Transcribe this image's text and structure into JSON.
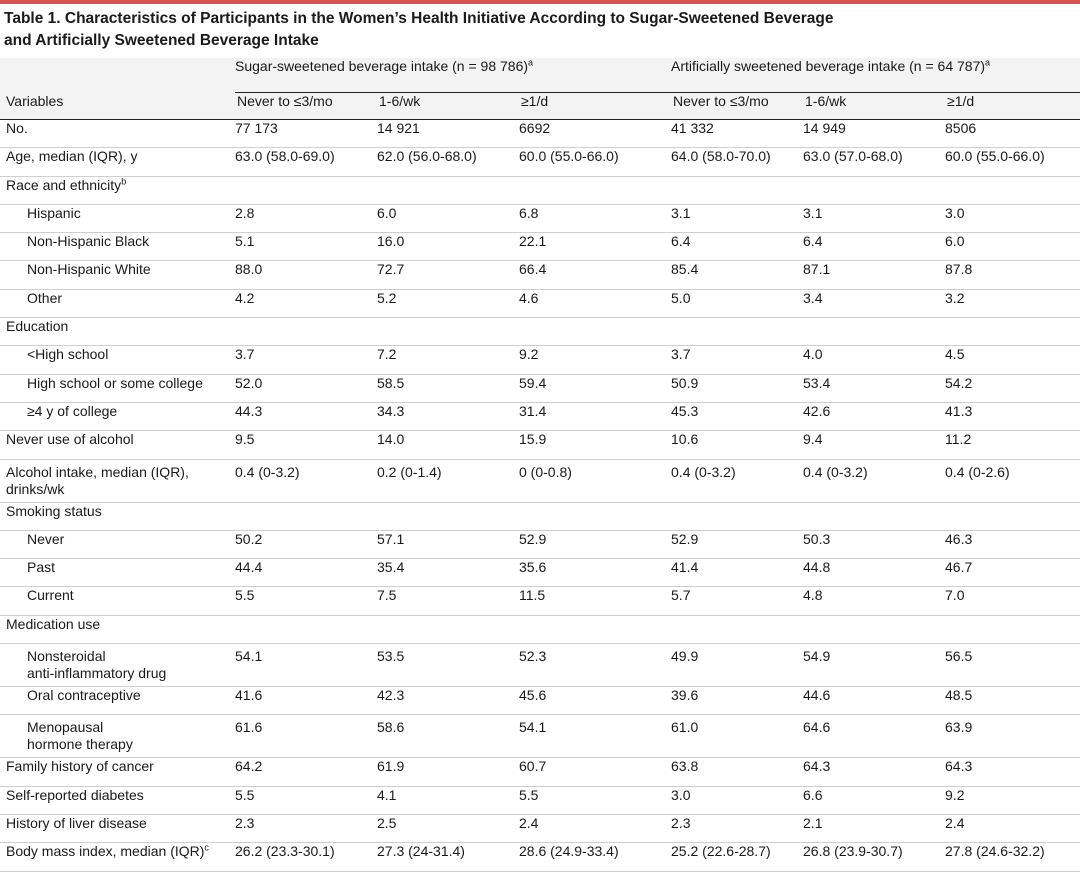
{
  "title_line1": "Table 1. Characteristics of Participants in the Women’s Health Initiative According to Sugar-Sweetened Beverage",
  "title_line2": "and Artificially Sweetened Beverage Intake",
  "group_sugar": "Sugar-sweetened beverage intake (n = 98 786)",
  "group_sugar_note": "a",
  "group_art": "Artificially sweetened beverage intake (n = 64 787)",
  "group_art_note": "a",
  "col_variables": "Variables",
  "cols": [
    "Never to ≤3/mo",
    "1-6/wk",
    "≥1/d",
    "Never to ≤3/mo",
    "1-6/wk",
    "≥1/d"
  ],
  "rows": [
    {
      "label": "No.",
      "values": [
        "77 173",
        "14 921",
        "6692",
        "41 332",
        "14 949",
        "8506"
      ]
    },
    {
      "label": "Age, median (IQR), y",
      "values": [
        "63.0 (58.0-69.0)",
        "62.0 (56.0-68.0)",
        "60.0 (55.0-66.0)",
        "64.0 (58.0-70.0)",
        "63.0 (57.0-68.0)",
        "60.0 (55.0-66.0)"
      ]
    },
    {
      "label": "Race and ethnicity",
      "note": "b",
      "values": [
        "",
        "",
        "",
        "",
        "",
        ""
      ]
    },
    {
      "label": "Hispanic",
      "sub": true,
      "values": [
        "2.8",
        "6.0",
        "6.8",
        "3.1",
        "3.1",
        "3.0"
      ]
    },
    {
      "label": "Non-Hispanic Black",
      "sub": true,
      "values": [
        "5.1",
        "16.0",
        "22.1",
        "6.4",
        "6.4",
        "6.0"
      ]
    },
    {
      "label": "Non-Hispanic White",
      "sub": true,
      "values": [
        "88.0",
        "72.7",
        "66.4",
        "85.4",
        "87.1",
        "87.8"
      ]
    },
    {
      "label": "Other",
      "sub": true,
      "values": [
        "4.2",
        "5.2",
        "4.6",
        "5.0",
        "3.4",
        "3.2"
      ]
    },
    {
      "label": "Education",
      "values": [
        "",
        "",
        "",
        "",
        "",
        ""
      ]
    },
    {
      "label": "<High school",
      "sub": true,
      "values": [
        "3.7",
        "7.2",
        "9.2",
        "3.7",
        "4.0",
        "4.5"
      ]
    },
    {
      "label": "High school or some college",
      "sub": true,
      "values": [
        "52.0",
        "58.5",
        "59.4",
        "50.9",
        "53.4",
        "54.2"
      ]
    },
    {
      "label": "≥4 y of college",
      "sub": true,
      "values": [
        "44.3",
        "34.3",
        "31.4",
        "45.3",
        "42.6",
        "41.3"
      ]
    },
    {
      "label": "Never use of alcohol",
      "values": [
        "9.5",
        "14.0",
        "15.9",
        "10.6",
        "9.4",
        "11.2"
      ]
    },
    {
      "label": "Alcohol intake, median (IQR),",
      "label2": "drinks/wk",
      "values": [
        "0.4 (0-3.2)",
        "0.2 (0-1.4)",
        "0 (0-0.8)",
        "0.4 (0-3.2)",
        "0.4 (0-3.2)",
        "0.4 (0-2.6)"
      ]
    },
    {
      "label": "Smoking status",
      "values": [
        "",
        "",
        "",
        "",
        "",
        ""
      ]
    },
    {
      "label": "Never",
      "sub": true,
      "values": [
        "50.2",
        "57.1",
        "52.9",
        "52.9",
        "50.3",
        "46.3"
      ]
    },
    {
      "label": "Past",
      "sub": true,
      "values": [
        "44.4",
        "35.4",
        "35.6",
        "41.4",
        "44.8",
        "46.7"
      ]
    },
    {
      "label": "Current",
      "sub": true,
      "values": [
        "5.5",
        "7.5",
        "11.5",
        "5.7",
        "4.8",
        "7.0"
      ]
    },
    {
      "label": "Medication use",
      "values": [
        "",
        "",
        "",
        "",
        "",
        ""
      ]
    },
    {
      "label": "Nonsteroidal",
      "label2": "anti-inflammatory drug",
      "sub": true,
      "values": [
        "54.1",
        "53.5",
        "52.3",
        "49.9",
        "54.9",
        "56.5"
      ]
    },
    {
      "label": "Oral contraceptive",
      "sub": true,
      "values": [
        "41.6",
        "42.3",
        "45.6",
        "39.6",
        "44.6",
        "48.5"
      ]
    },
    {
      "label": "Menopausal",
      "label2": "hormone therapy",
      "sub": true,
      "values": [
        "61.6",
        "58.6",
        "54.1",
        "61.0",
        "64.6",
        "63.9"
      ]
    },
    {
      "label": "Family history of cancer",
      "values": [
        "64.2",
        "61.9",
        "60.7",
        "63.8",
        "64.3",
        "64.3"
      ]
    },
    {
      "label": "Self-reported diabetes",
      "values": [
        "5.5",
        "4.1",
        "5.5",
        "3.0",
        "6.6",
        "9.2"
      ]
    },
    {
      "label": "History of liver disease",
      "values": [
        "2.3",
        "2.5",
        "2.4",
        "2.3",
        "2.1",
        "2.4"
      ]
    },
    {
      "label": "Body mass index, median (IQR)",
      "note": "c",
      "values": [
        "26.2 (23.3-30.1)",
        "27.3 (24-31.4)",
        "28.6 (24.9-33.4)",
        "25.2 (22.6-28.7)",
        "26.8 (23.9-30.7)",
        "27.8 (24.6-32.2)"
      ]
    }
  ],
  "colors": {
    "accent_rule": "#d9534f",
    "row_divider": "#cfcfcf",
    "text": "#1a1a1a"
  }
}
